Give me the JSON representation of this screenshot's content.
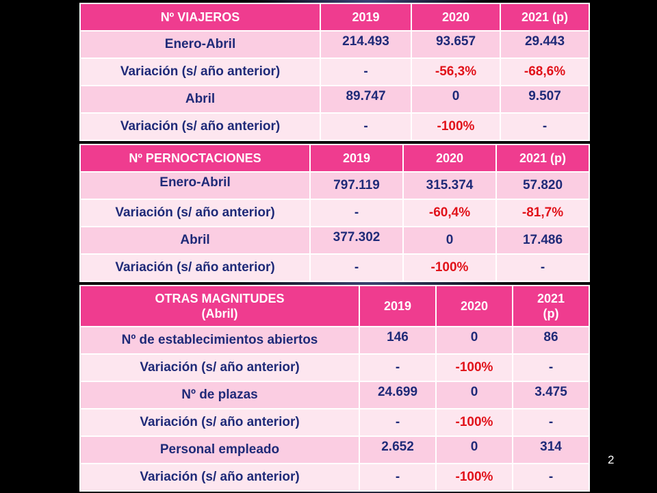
{
  "viajeros": {
    "header": [
      "Nº VIAJEROS",
      "2019",
      "2020",
      "2021 (p)"
    ],
    "rows": [
      {
        "label": "Enero-Abril",
        "v2019": "214.493",
        "v2020": "93.657",
        "v2021": "29.443"
      },
      {
        "label": "Variación  (s/ año anterior)",
        "v2019": "-",
        "v2020": "-56,3%",
        "v2021": "-68,6%"
      },
      {
        "label": "Abril",
        "v2019": "89.747",
        "v2020": "0",
        "v2021": "9.507"
      },
      {
        "label": "Variación  (s/ año anterior)",
        "v2019": "-",
        "v2020": "-100%",
        "v2021": "-"
      }
    ]
  },
  "pernoctaciones": {
    "header": [
      "Nº PERNOCTACIONES",
      "2019",
      "2020",
      "2021 (p)"
    ],
    "rows": [
      {
        "label": "Enero-Abril",
        "v2019": "797.119",
        "v2020": "315.374",
        "v2021": "57.820"
      },
      {
        "label": "Variación  (s/ año anterior)",
        "v2019": "-",
        "v2020": "-60,4%",
        "v2021": "-81,7%"
      },
      {
        "label": "Abril",
        "v2019": "377.302",
        "v2020": "0",
        "v2021": "17.486"
      },
      {
        "label": "Variación  (s/ año anterior)",
        "v2019": "-",
        "v2020": "-100%",
        "v2021": "-"
      }
    ]
  },
  "otras": {
    "header_line1": "OTRAS MAGNITUDES",
    "header_line2": "(Abril)",
    "y2019": "2019",
    "y2020": "2020",
    "y2021_line1": "2021",
    "y2021_line2": "(p)",
    "rows": [
      {
        "label": "Nº de establecimientos abiertos",
        "v2019": "146",
        "v2020": "0",
        "v2021": "86"
      },
      {
        "label": "Variación  (s/ año anterior)",
        "v2019": "-",
        "v2020": "-100%",
        "v2021": "-"
      },
      {
        "label": "Nº de plazas",
        "v2019": "24.699",
        "v2020": "0",
        "v2021": "3.475"
      },
      {
        "label": "Variación  (s/ año anterior)",
        "v2019": "-",
        "v2020": "-100%",
        "v2021": "-"
      },
      {
        "label": "Personal empleado",
        "v2019": "2.652",
        "v2020": "0",
        "v2021": "314"
      },
      {
        "label": "Variación  (s/ año anterior)",
        "v2019": "-",
        "v2020": "-100%",
        "v2021": "-"
      }
    ]
  },
  "colors": {
    "header_bg": "#ef3c8f",
    "row_bg_1": "#fbcde2",
    "row_bg_2": "#fde6ef",
    "text_navy": "#1f2a78",
    "negative_red": "#e1121a"
  },
  "page_number": "2"
}
